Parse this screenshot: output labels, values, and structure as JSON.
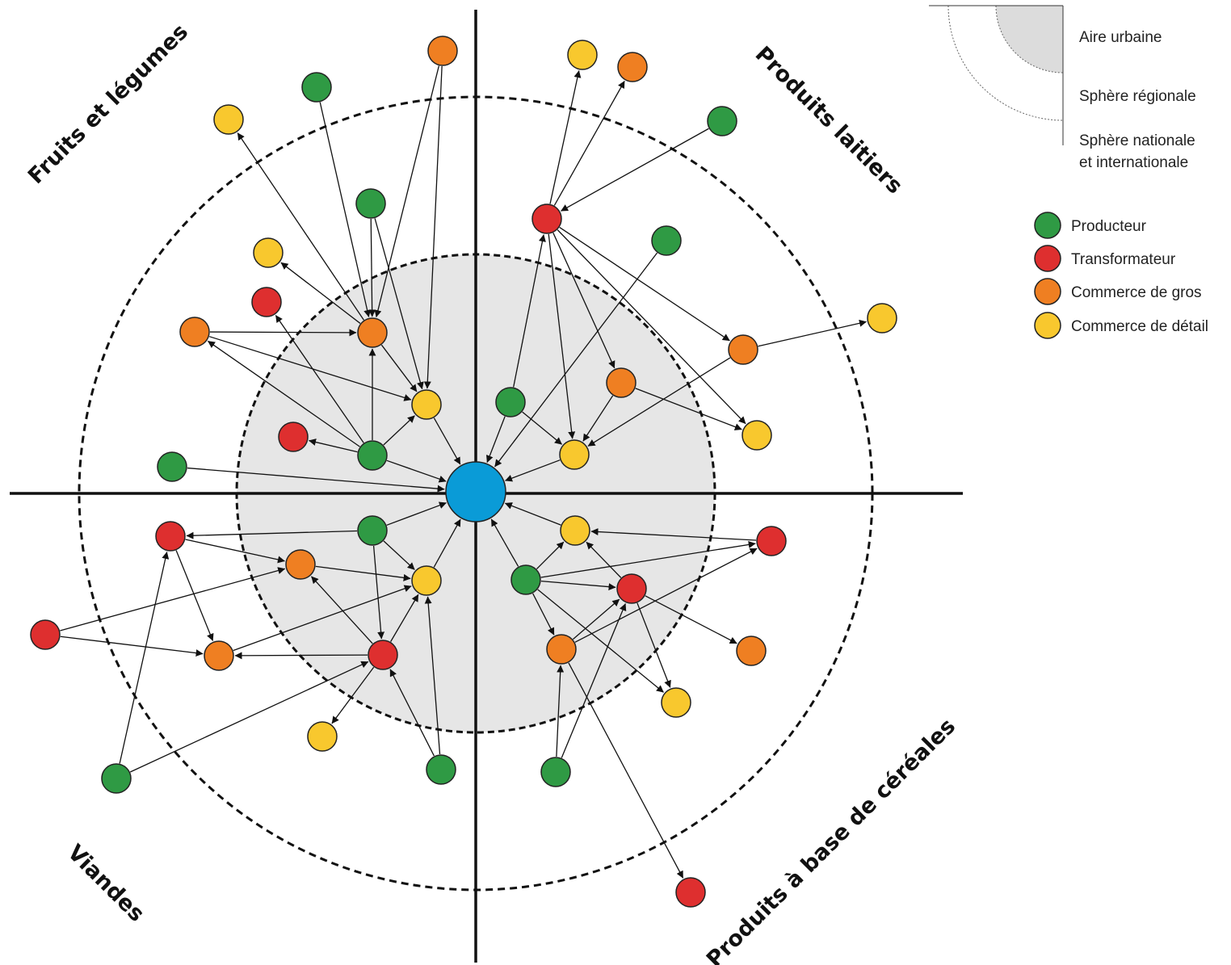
{
  "colors": {
    "producteur": "#2f9a44",
    "transformateur": "#de2f2f",
    "commerce_gros": "#ef7f22",
    "commerce_detail": "#f8c82e",
    "centre": "#0a9bd7",
    "aire_urbaine": "#e6e6e6"
  },
  "sectors": {
    "fruits": "Fruits et légumes",
    "laitiers": "Produits laitiers",
    "viandes": "Viandes",
    "cereales": "Produits à base de céréales"
  },
  "legend": {
    "zones": {
      "aire_urbaine": "Aire urbaine",
      "sphere_regionale": "Sphère régionale",
      "sphere_nationale_1": "Sphère nationale",
      "sphere_nationale_2": "et internationale"
    },
    "actors": [
      {
        "key": "producteur",
        "label": "Producteur"
      },
      {
        "key": "transformateur",
        "label": "Transformateur"
      },
      {
        "key": "commerce_gros",
        "label": "Commerce de gros"
      },
      {
        "key": "commerce_detail",
        "label": "Commerce de détail"
      }
    ]
  }
}
